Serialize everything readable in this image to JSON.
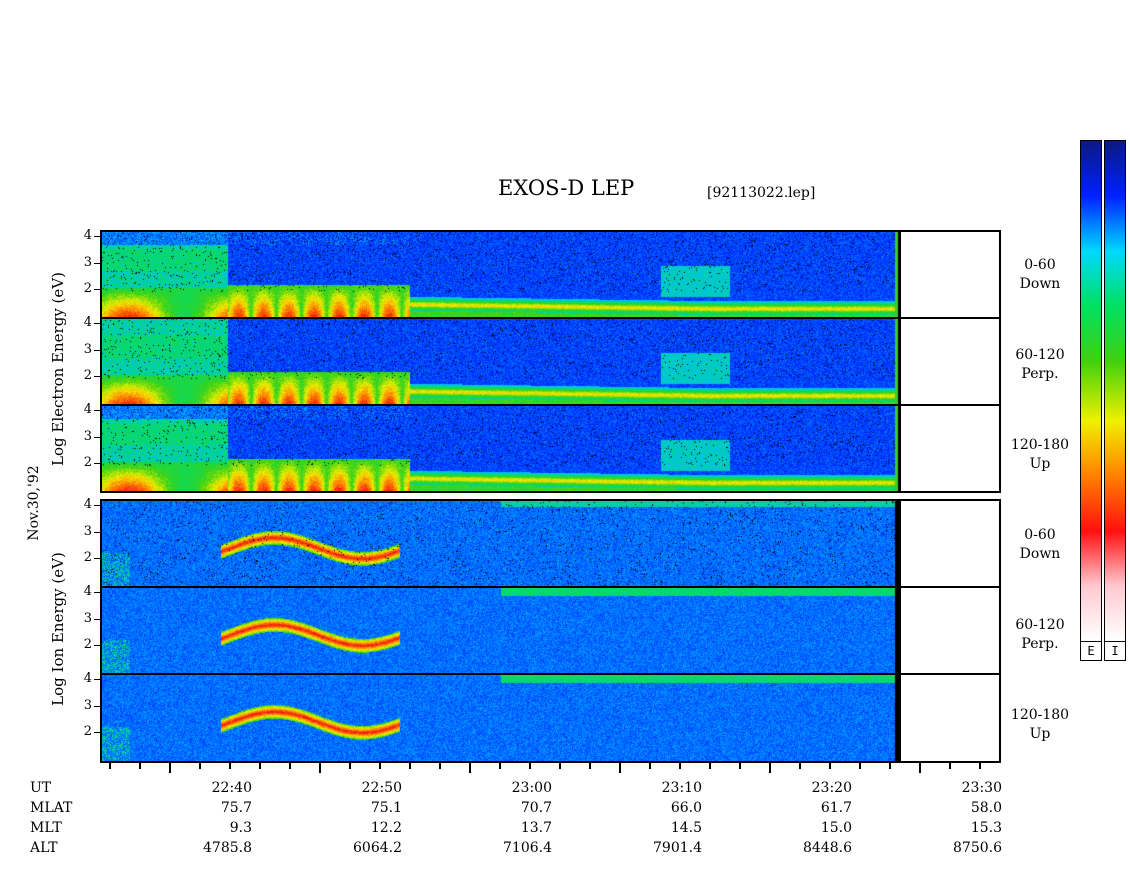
{
  "header": {
    "title": "EXOS-D LEP",
    "file": "[92113022.lep]"
  },
  "colorbar": {
    "labels": [
      "E",
      "I"
    ],
    "stops": [
      "#0a1a80",
      "#0020ff",
      "#00d8ff",
      "#00e060",
      "#40d010",
      "#f0f000",
      "#ff8000",
      "#ff1010",
      "#ffc8d0",
      "#ffffff"
    ]
  },
  "y_axes": {
    "electron_label": "Log   Electron   Energy (eV)",
    "ion_label": "Log   Ion   Energy (eV)",
    "date_label": "Nov.30,'92"
  },
  "chart_data": {
    "type": "heatmap",
    "title": "EXOS-D LEP",
    "xlabel": "UT",
    "ylabel": "Log Energy (eV)",
    "yticks": [
      2,
      3,
      4
    ],
    "ylim": [
      1,
      4
    ],
    "panels": [
      {
        "species": "Electron",
        "pitch_angle": "0-60",
        "direction": "Down"
      },
      {
        "species": "Electron",
        "pitch_angle": "60-120",
        "direction": "Perp."
      },
      {
        "species": "Electron",
        "pitch_angle": "120-180",
        "direction": "Up"
      },
      {
        "species": "Ion",
        "pitch_angle": "0-60",
        "direction": "Down"
      },
      {
        "species": "Ion",
        "pitch_angle": "60-120",
        "direction": "Perp."
      },
      {
        "species": "Ion",
        "pitch_angle": "120-180",
        "direction": "Up"
      }
    ],
    "x_axis": {
      "rows": [
        "UT",
        "MLAT",
        "MLT",
        "ALT"
      ],
      "ticks": [
        {
          "UT": "22:40",
          "MLAT": "75.7",
          "MLT": "9.3",
          "ALT": "4785.8"
        },
        {
          "UT": "22:50",
          "MLAT": "75.1",
          "MLT": "12.2",
          "ALT": "6064.2"
        },
        {
          "UT": "23:00",
          "MLAT": "70.7",
          "MLT": "13.7",
          "ALT": "7106.4"
        },
        {
          "UT": "23:10",
          "MLAT": "66.0",
          "MLT": "14.5",
          "ALT": "7901.4"
        },
        {
          "UT": "23:20",
          "MLAT": "61.7",
          "MLT": "15.0",
          "ALT": "8448.6"
        },
        {
          "UT": "23:30",
          "MLAT": "58.0",
          "MLT": "15.3",
          "ALT": "8750.6"
        }
      ]
    }
  }
}
